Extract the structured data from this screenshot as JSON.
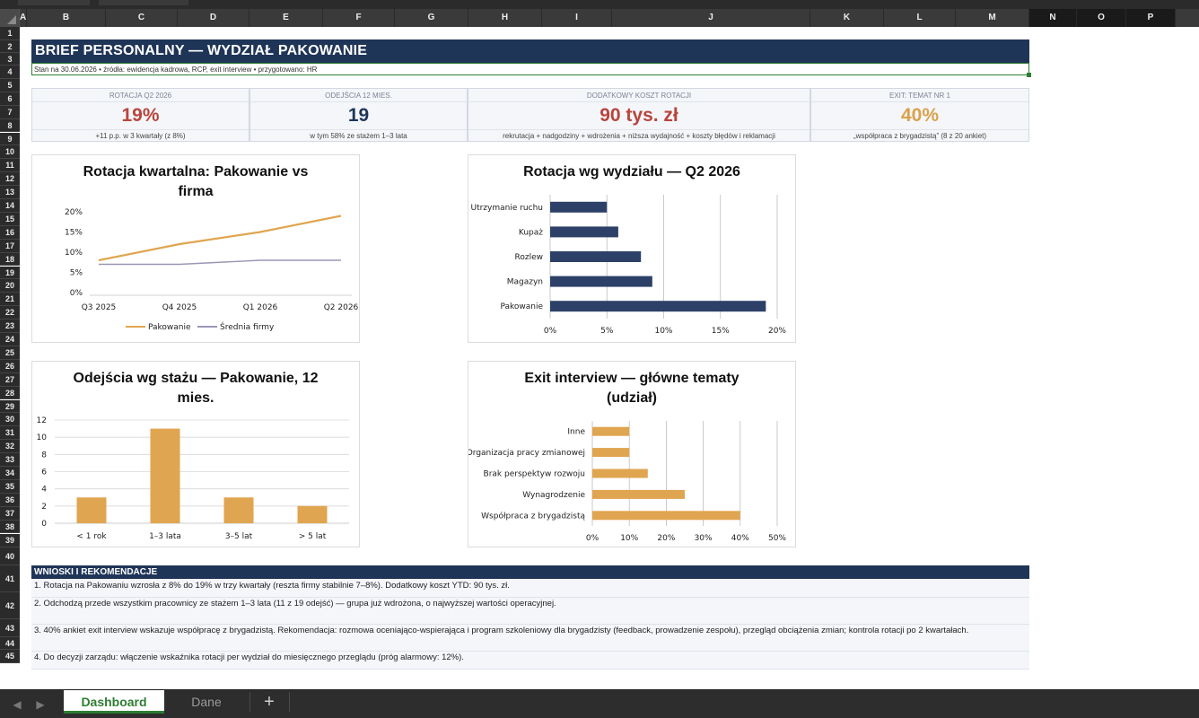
{
  "columns": [
    "A",
    "B",
    "C",
    "D",
    "E",
    "F",
    "G",
    "H",
    "I",
    "J",
    "K",
    "L",
    "M",
    "N",
    "O",
    "P"
  ],
  "rows": [
    "1",
    "2",
    "3",
    "4",
    "5",
    "6",
    "7",
    "8",
    "9",
    "10",
    "11",
    "12",
    "13",
    "14",
    "15",
    "16",
    "17",
    "18",
    "19",
    "20",
    "21",
    "22",
    "23",
    "24",
    "25",
    "26",
    "27",
    "28",
    "29",
    "30",
    "31",
    "32",
    "33",
    "34",
    "35",
    "36",
    "37",
    "38",
    "39",
    "40",
    "41",
    "42",
    "43",
    "44",
    "45"
  ],
  "header": {
    "title": "BRIEF PERSONALNY — WYDZIAŁ PAKOWANIE",
    "subtitle": "Stan na 30.06.2026  •  źródła: ewidencja kadrowa, RCP, exit interview  •  przygotowano: HR"
  },
  "kpis": [
    {
      "label": "ROTACJA Q2 2026",
      "value": "19%",
      "note": "+11 p.p. w 3 kwartały (z 8%)",
      "color": "#b8453c"
    },
    {
      "label": "ODEJŚCIA 12 MIES.",
      "value": "19",
      "note": "w tym 58% ze stażem 1–3 lata",
      "color": "#1f3558"
    },
    {
      "label": "DODATKOWY KOSZT ROTACJI",
      "value": "90 tys. zł",
      "note": "rekrutacja + nadgodziny + wdrożenia + niższa wydajność + koszty błędów i reklamacji",
      "color": "#b8453c"
    },
    {
      "label": "EXIT: TEMAT NR 1",
      "value": "40%",
      "note": "„współpraca z brygadzistą” (8 z 20 ankiet)",
      "color": "#d9a24a"
    }
  ],
  "chart_data": [
    {
      "type": "line",
      "title": "Rotacja kwartalna: Pakowanie vs firma",
      "categories": [
        "Q3 2025",
        "Q4 2025",
        "Q1 2026",
        "Q2 2026"
      ],
      "series": [
        {
          "name": "Pakowanie",
          "values": [
            8,
            12,
            15,
            19
          ],
          "color": "#e0a550"
        },
        {
          "name": "Średnia firmy",
          "values": [
            7,
            7,
            8,
            8
          ],
          "color": "#9a97b5"
        }
      ],
      "ylim": [
        0,
        20
      ],
      "yticks": [
        "0%",
        "5%",
        "10%",
        "15%",
        "20%"
      ],
      "legend": "bottom"
    },
    {
      "type": "bar",
      "orientation": "horizontal",
      "title": "Rotacja wg wydziału — Q2 2026",
      "categories": [
        "Utrzymanie ruchu",
        "Kupaż",
        "Rozlew",
        "Magazyn",
        "Pakowanie"
      ],
      "values": [
        5,
        6,
        8,
        9,
        19
      ],
      "color": "#2d4168",
      "xlim": [
        0,
        20
      ],
      "xticks": [
        "0%",
        "5%",
        "10%",
        "15%",
        "20%"
      ],
      "grid": true
    },
    {
      "type": "bar",
      "title": "Odejścia wg stażu — Pakowanie, 12 mies.",
      "categories": [
        "< 1 rok",
        "1–3 lata",
        "3–5 lat",
        "> 5 lat"
      ],
      "values": [
        3,
        11,
        3,
        2
      ],
      "color": "#e0a550",
      "ylim": [
        0,
        12
      ],
      "yticks": [
        "0",
        "2",
        "4",
        "6",
        "8",
        "10",
        "12"
      ],
      "grid": true
    },
    {
      "type": "bar",
      "orientation": "horizontal",
      "title": "Exit interview — główne tematy (udział)",
      "categories": [
        "Inne",
        "Organizacja pracy zmianowej",
        "Brak perspektyw rozwoju",
        "Wynagrodzenie",
        "Współpraca z brygadzistą"
      ],
      "values": [
        10,
        10,
        15,
        25,
        40
      ],
      "color": "#e0a550",
      "xlim": [
        0,
        50
      ],
      "xticks": [
        "0%",
        "10%",
        "20%",
        "30%",
        "40%",
        "50%"
      ],
      "grid": true
    }
  ],
  "wnioski": {
    "title": "WNIOSKI I REKOMENDACJE",
    "items": [
      "1. Rotacja na Pakowaniu wzrosła z 8% do 19% w trzy kwartały (reszta firmy stabilnie 7–8%). Dodatkowy koszt YTD: 90 tys. zł.",
      "2. Odchodzą przede wszystkim pracownicy ze stażem 1–3 lata (11 z 19 odejść) — grupa już wdrożona, o najwyższej wartości operacyjnej.",
      "3. 40% ankiet exit interview wskazuje współpracę z brygadzistą. Rekomendacja: rozmowa oceniająco-wspierająca i program szkoleniowy dla brygadzisty (feedback, prowadzenie zespołu), przegląd obciążenia zmian; kontrola rotacji po 2 kwartałach.",
      "4. Do decyzji zarządu: włączenie wskaźnika rotacji per wydział do miesięcznego przeglądu (próg alarmowy: 12%)."
    ]
  },
  "sheets": {
    "active": "Dashboard",
    "other": "Dane",
    "add": "+"
  },
  "icons": {
    "prev": "chevron-left-icon",
    "next": "chevron-right-icon",
    "add": "plus-icon"
  }
}
